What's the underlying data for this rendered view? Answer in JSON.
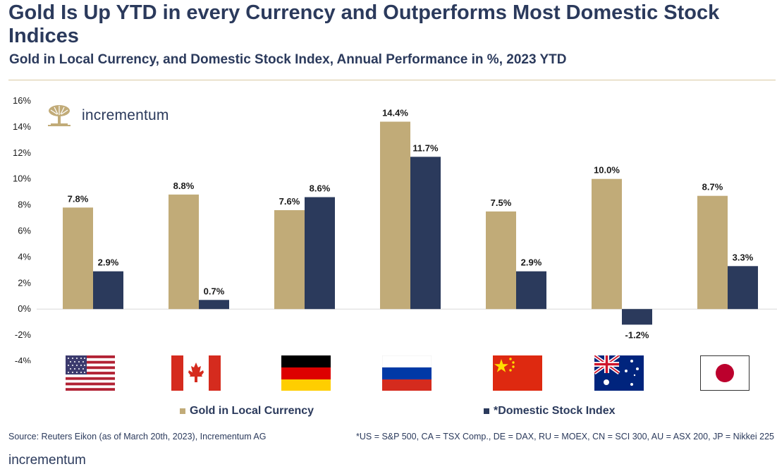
{
  "header": {
    "title": "Gold Is Up YTD in every Currency and Outperforms Most Domestic Stock Indices",
    "subtitle": "Gold in Local Currency, and Domestic Stock Index, Annual Performance in %, 2023 YTD"
  },
  "brand": {
    "name": "incrementum",
    "logo_icon": "tree-logo-icon"
  },
  "chart_data": {
    "type": "bar",
    "title": "Gold in Local Currency, and Domestic Stock Index, Annual Performance in %, 2023 YTD",
    "categories": [
      "US",
      "CA",
      "DE",
      "RU",
      "CN",
      "AU",
      "JP"
    ],
    "series": [
      {
        "name": "Gold in Local Currency",
        "color": "#c1ab78",
        "values": [
          7.8,
          8.8,
          7.6,
          14.4,
          7.5,
          10.0,
          8.7
        ]
      },
      {
        "name": "*Domestic Stock Index",
        "color": "#2b3a5c",
        "values": [
          2.9,
          0.7,
          8.6,
          11.7,
          2.9,
          -1.2,
          3.3
        ]
      }
    ],
    "ylim": [
      -4,
      16
    ],
    "yticks": [
      -4,
      -2,
      0,
      2,
      4,
      6,
      8,
      10,
      12,
      14,
      16
    ],
    "ytick_suffix": "%",
    "xlabel": "",
    "ylabel": "",
    "grid": false,
    "legend": "bottom"
  },
  "flags": [
    "us-flag-icon",
    "canada-flag-icon",
    "germany-flag-icon",
    "russia-flag-icon",
    "china-flag-icon",
    "australia-flag-icon",
    "japan-flag-icon"
  ],
  "footer": {
    "source": "Source: Reuters Eikon  (as of March 20th, 2023), Incrementum AG",
    "note": "*US = S&P 500, CA = TSX Comp., DE = DAX, RU = MOEX, CN = SCI 300, AU = ASX 200, JP = Nikkei 225",
    "brand": "incrementum"
  }
}
